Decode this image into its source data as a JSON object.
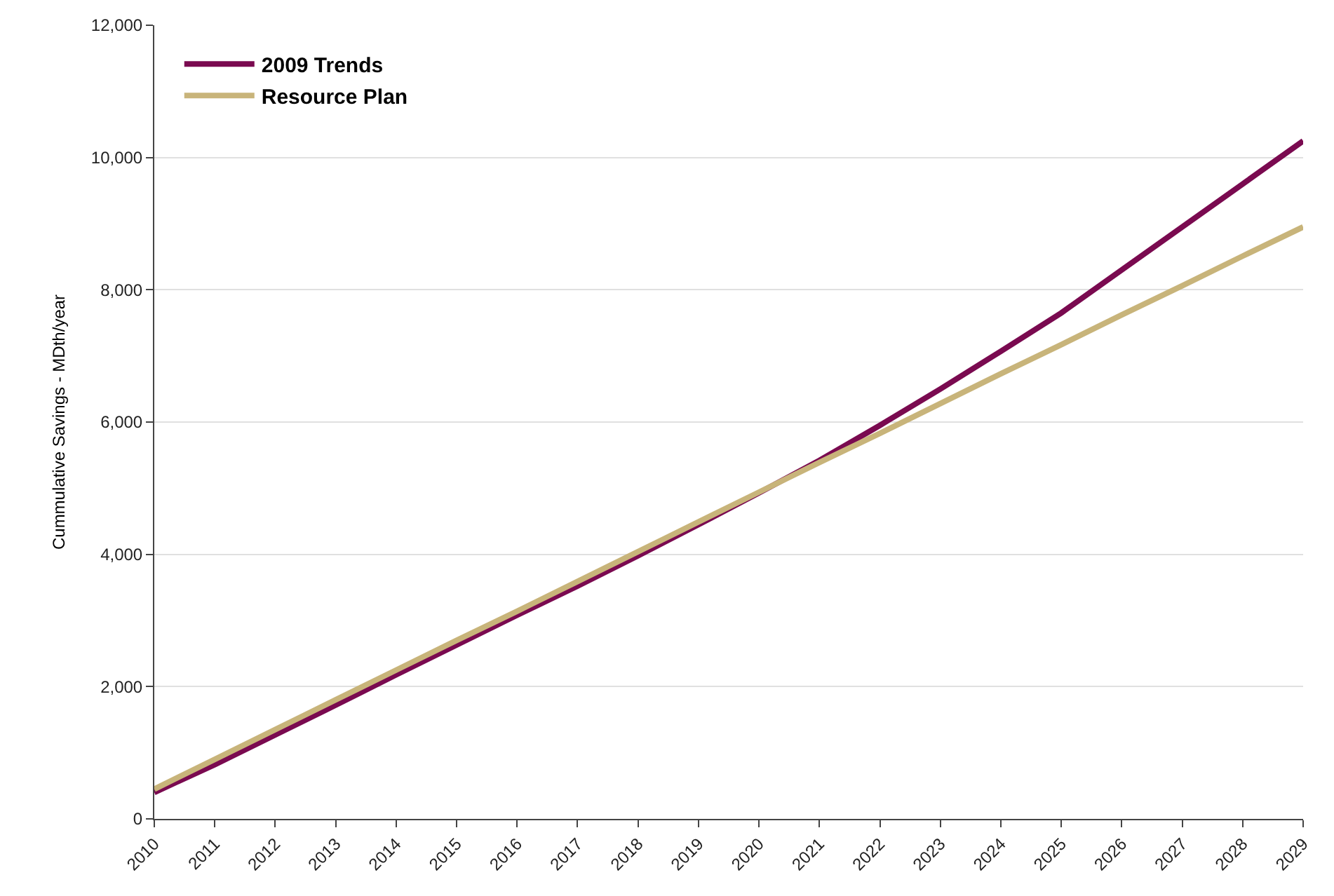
{
  "chart_data": {
    "type": "line",
    "ylabel": "Cummulative Savings - MDth/year",
    "categories": [
      "2010",
      "2011",
      "2012",
      "2013",
      "2014",
      "2015",
      "2016",
      "2017",
      "2018",
      "2019",
      "2020",
      "2021",
      "2022",
      "2023",
      "2024",
      "2025",
      "2026",
      "2027",
      "2028",
      "2029"
    ],
    "series": [
      {
        "name": "2009 Trends",
        "color": "#7a0a50",
        "values": [
          400,
          820,
          1270,
          1720,
          2180,
          2630,
          3080,
          3520,
          3980,
          4450,
          4930,
          5420,
          5950,
          6500,
          7070,
          7650,
          8300,
          8950,
          9600,
          10250
        ]
      },
      {
        "name": "Resource Plan",
        "color": "#c8b47a",
        "values": [
          450,
          900,
          1350,
          1800,
          2250,
          2700,
          3140,
          3590,
          4040,
          4490,
          4940,
          5390,
          5830,
          6280,
          6730,
          7170,
          7620,
          8060,
          8510,
          8950
        ]
      }
    ],
    "ylim": [
      0,
      12000
    ],
    "yticks": [
      {
        "value": 0,
        "label": "0"
      },
      {
        "value": 2000,
        "label": "2,000"
      },
      {
        "value": 4000,
        "label": "4,000"
      },
      {
        "value": 6000,
        "label": "6,000"
      },
      {
        "value": 8000,
        "label": "8,000"
      },
      {
        "value": 10000,
        "label": "10,000"
      },
      {
        "value": 12000,
        "label": "12,000"
      }
    ],
    "grid": "y",
    "legend": "top left",
    "marker": "none",
    "line_style": "solid"
  }
}
